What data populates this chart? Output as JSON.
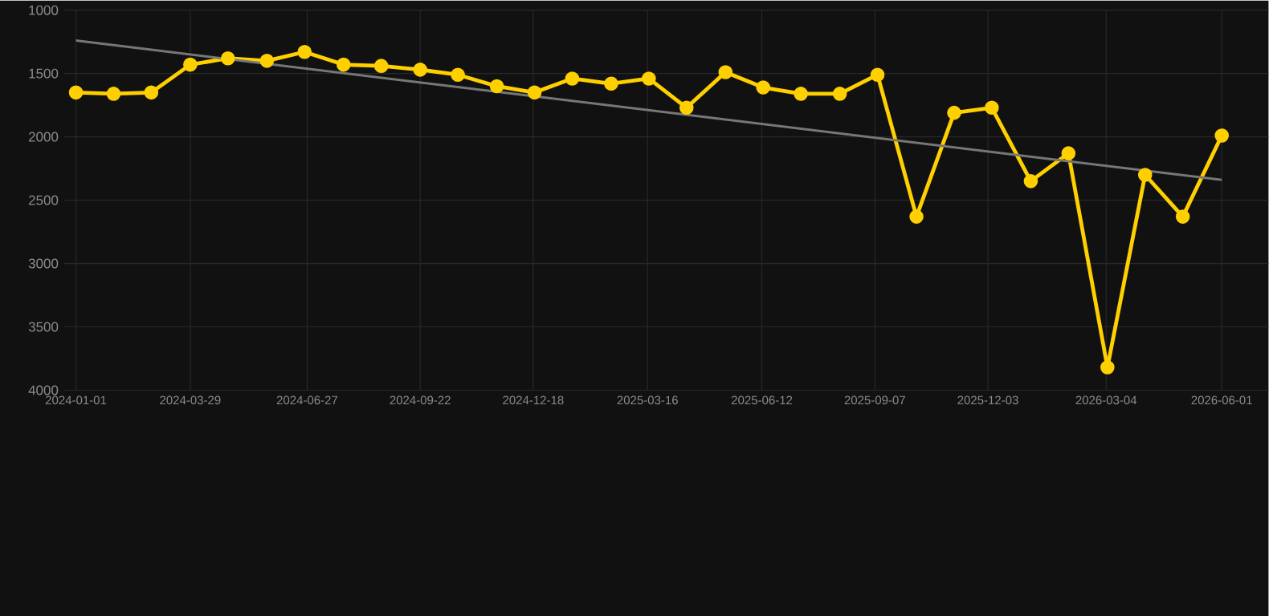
{
  "chart_data": {
    "type": "line",
    "x": [
      "2024-01-01",
      "2024-01-30",
      "2024-02-28",
      "2024-03-29",
      "2024-04-27",
      "2024-05-27",
      "2024-06-25",
      "2024-07-25",
      "2024-08-23",
      "2024-09-22",
      "2024-10-21",
      "2024-11-20",
      "2024-12-19",
      "2025-01-17",
      "2025-02-16",
      "2025-03-17",
      "2025-04-15",
      "2025-05-15",
      "2025-06-13",
      "2025-07-12",
      "2025-08-11",
      "2025-09-09",
      "2025-10-09",
      "2025-11-07",
      "2025-12-06",
      "2026-01-05",
      "2026-02-03",
      "2026-03-05",
      "2026-04-03",
      "2026-05-02",
      "2026-06-01"
    ],
    "series": [
      {
        "color": "#ffd000",
        "marker": "circle",
        "values": [
          1650,
          1660,
          1650,
          1430,
          1380,
          1400,
          1330,
          1430,
          1440,
          1470,
          1510,
          1600,
          1650,
          1540,
          1580,
          1540,
          1770,
          1490,
          1610,
          1660,
          1660,
          1510,
          2630,
          1810,
          1770,
          2350,
          2130,
          3820,
          2300,
          2630,
          1990
        ]
      },
      {
        "type": "line",
        "color": "#777777",
        "marker": "none",
        "x": [
          "2024-01-01",
          "2026-06-01"
        ],
        "values": [
          1240,
          2340
        ]
      }
    ],
    "xlim": [
      "2023-12-23",
      "2026-07-07"
    ],
    "xticks": [
      "2024-01-01",
      "2024-03-29",
      "2024-06-27",
      "2024-09-22",
      "2024-12-18",
      "2025-03-16",
      "2025-06-12",
      "2025-09-07",
      "2025-12-03",
      "2026-03-04",
      "2026-06-01"
    ],
    "ylim": [
      4000,
      1000
    ],
    "yticks": [
      1000,
      1500,
      2000,
      2500,
      3000,
      3500,
      4000
    ],
    "grid": true
  }
}
